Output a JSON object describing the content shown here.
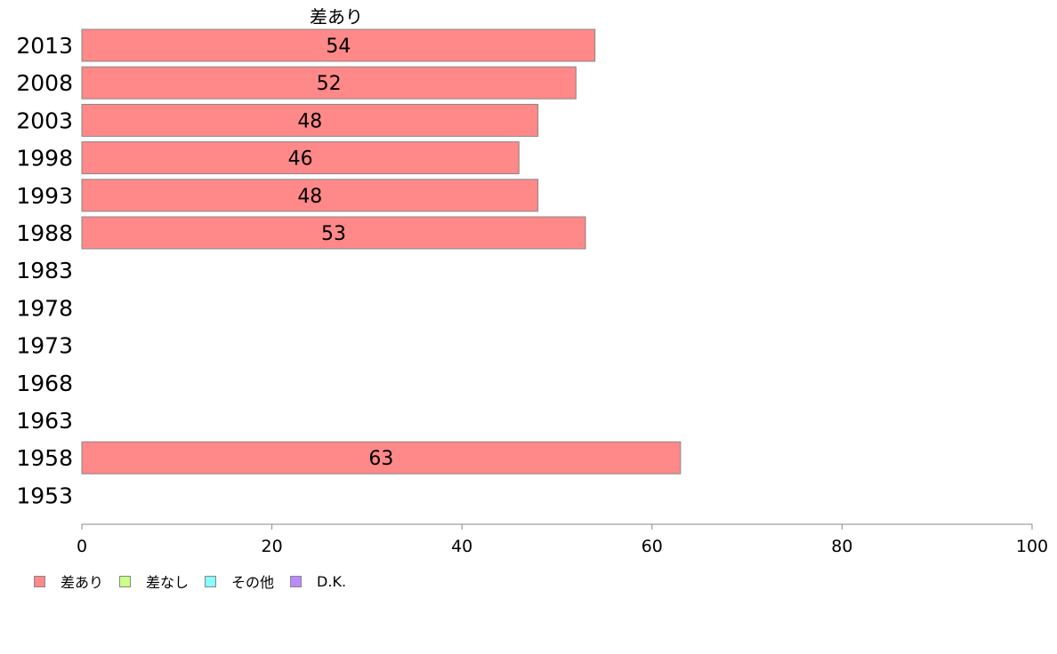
{
  "chart_data": {
    "type": "bar",
    "orientation": "horizontal",
    "title": "差あり",
    "categories": [
      "2013",
      "2008",
      "2003",
      "1998",
      "1993",
      "1988",
      "1983",
      "1978",
      "1973",
      "1968",
      "1963",
      "1958",
      "1953"
    ],
    "series": [
      {
        "name": "差あり",
        "color": "#ff8888",
        "values": [
          54,
          52,
          48,
          46,
          48,
          53,
          null,
          null,
          null,
          null,
          null,
          63,
          null
        ]
      }
    ],
    "xlim": [
      0,
      100
    ],
    "xticks": [
      "0",
      "20",
      "40",
      "60",
      "80",
      "100"
    ],
    "grid": false,
    "legend_position": "bottom-left"
  },
  "legend": [
    {
      "label": "差あり",
      "color": "#ff8888"
    },
    {
      "label": "差なし",
      "color": "#ccff88"
    },
    {
      "label": "その他",
      "color": "#88ffff"
    },
    {
      "label": "D.K.",
      "color": "#bb88ff"
    }
  ]
}
